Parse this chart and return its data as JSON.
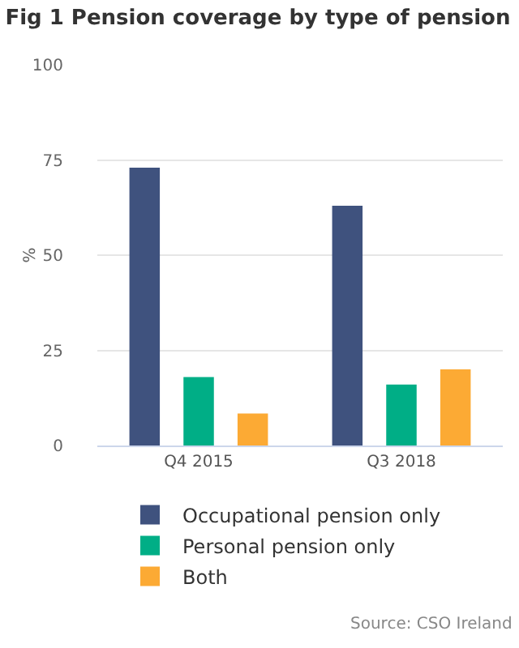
{
  "chart_data": {
    "type": "bar",
    "title": "Fig 1 Pension coverage by type of pension",
    "ylabel": "%",
    "categories": [
      "Q4 2015",
      "Q3 2018"
    ],
    "series": [
      {
        "name": "Occupational pension only",
        "color": "#3f527e",
        "values": [
          73,
          63
        ]
      },
      {
        "name": "Personal pension only",
        "color": "#00ae86",
        "values": [
          18,
          16
        ]
      },
      {
        "name": "Both",
        "color": "#fcaa34",
        "values": [
          8.4,
          20
        ]
      }
    ],
    "ylim": [
      0,
      100
    ],
    "yticks": [
      0,
      25,
      50,
      75,
      100
    ],
    "grid": "y",
    "legend": "bottom",
    "annotations": [
      "Source: CSO Ireland"
    ]
  }
}
